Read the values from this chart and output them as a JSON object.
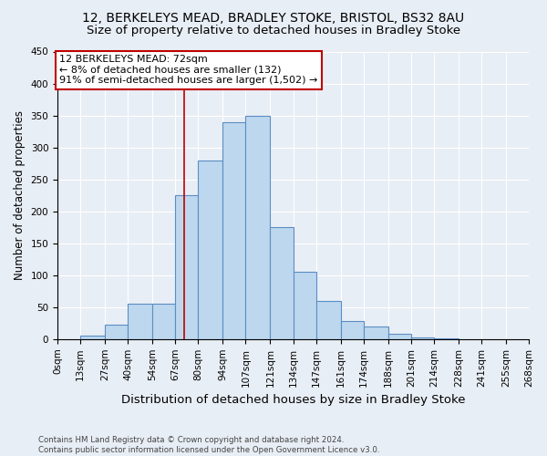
{
  "title1": "12, BERKELEYS MEAD, BRADLEY STOKE, BRISTOL, BS32 8AU",
  "title2": "Size of property relative to detached houses in Bradley Stoke",
  "xlabel": "Distribution of detached houses by size in Bradley Stoke",
  "ylabel": "Number of detached properties",
  "footnote": "Contains HM Land Registry data © Crown copyright and database right 2024.\nContains public sector information licensed under the Open Government Licence v3.0.",
  "bin_edges": [
    0,
    13,
    27,
    40,
    54,
    67,
    80,
    94,
    107,
    121,
    134,
    147,
    161,
    174,
    188,
    201,
    214,
    228,
    241,
    255,
    268
  ],
  "bar_heights": [
    0,
    5,
    22,
    55,
    55,
    225,
    280,
    340,
    350,
    175,
    105,
    60,
    28,
    20,
    8,
    2,
    1,
    0,
    0,
    0
  ],
  "bar_color": "#bdd7ee",
  "bar_edge_color": "#5b8ec4",
  "vline_x": 72,
  "vline_color": "#c00000",
  "annotation_text": "12 BERKELEYS MEAD: 72sqm\n← 8% of detached houses are smaller (132)\n91% of semi-detached houses are larger (1,502) →",
  "annotation_box_color": "#ffffff",
  "annotation_box_edge": "#c00000",
  "ylim": [
    0,
    450
  ],
  "yticks": [
    0,
    50,
    100,
    150,
    200,
    250,
    300,
    350,
    400,
    450
  ],
  "bg_color": "#e8eef5",
  "axes_bg_color": "#e8eef5",
  "title1_fontsize": 10,
  "title2_fontsize": 9.5,
  "xlabel_fontsize": 9.5,
  "ylabel_fontsize": 8.5,
  "tick_fontsize": 7.5,
  "annot_fontsize": 8
}
